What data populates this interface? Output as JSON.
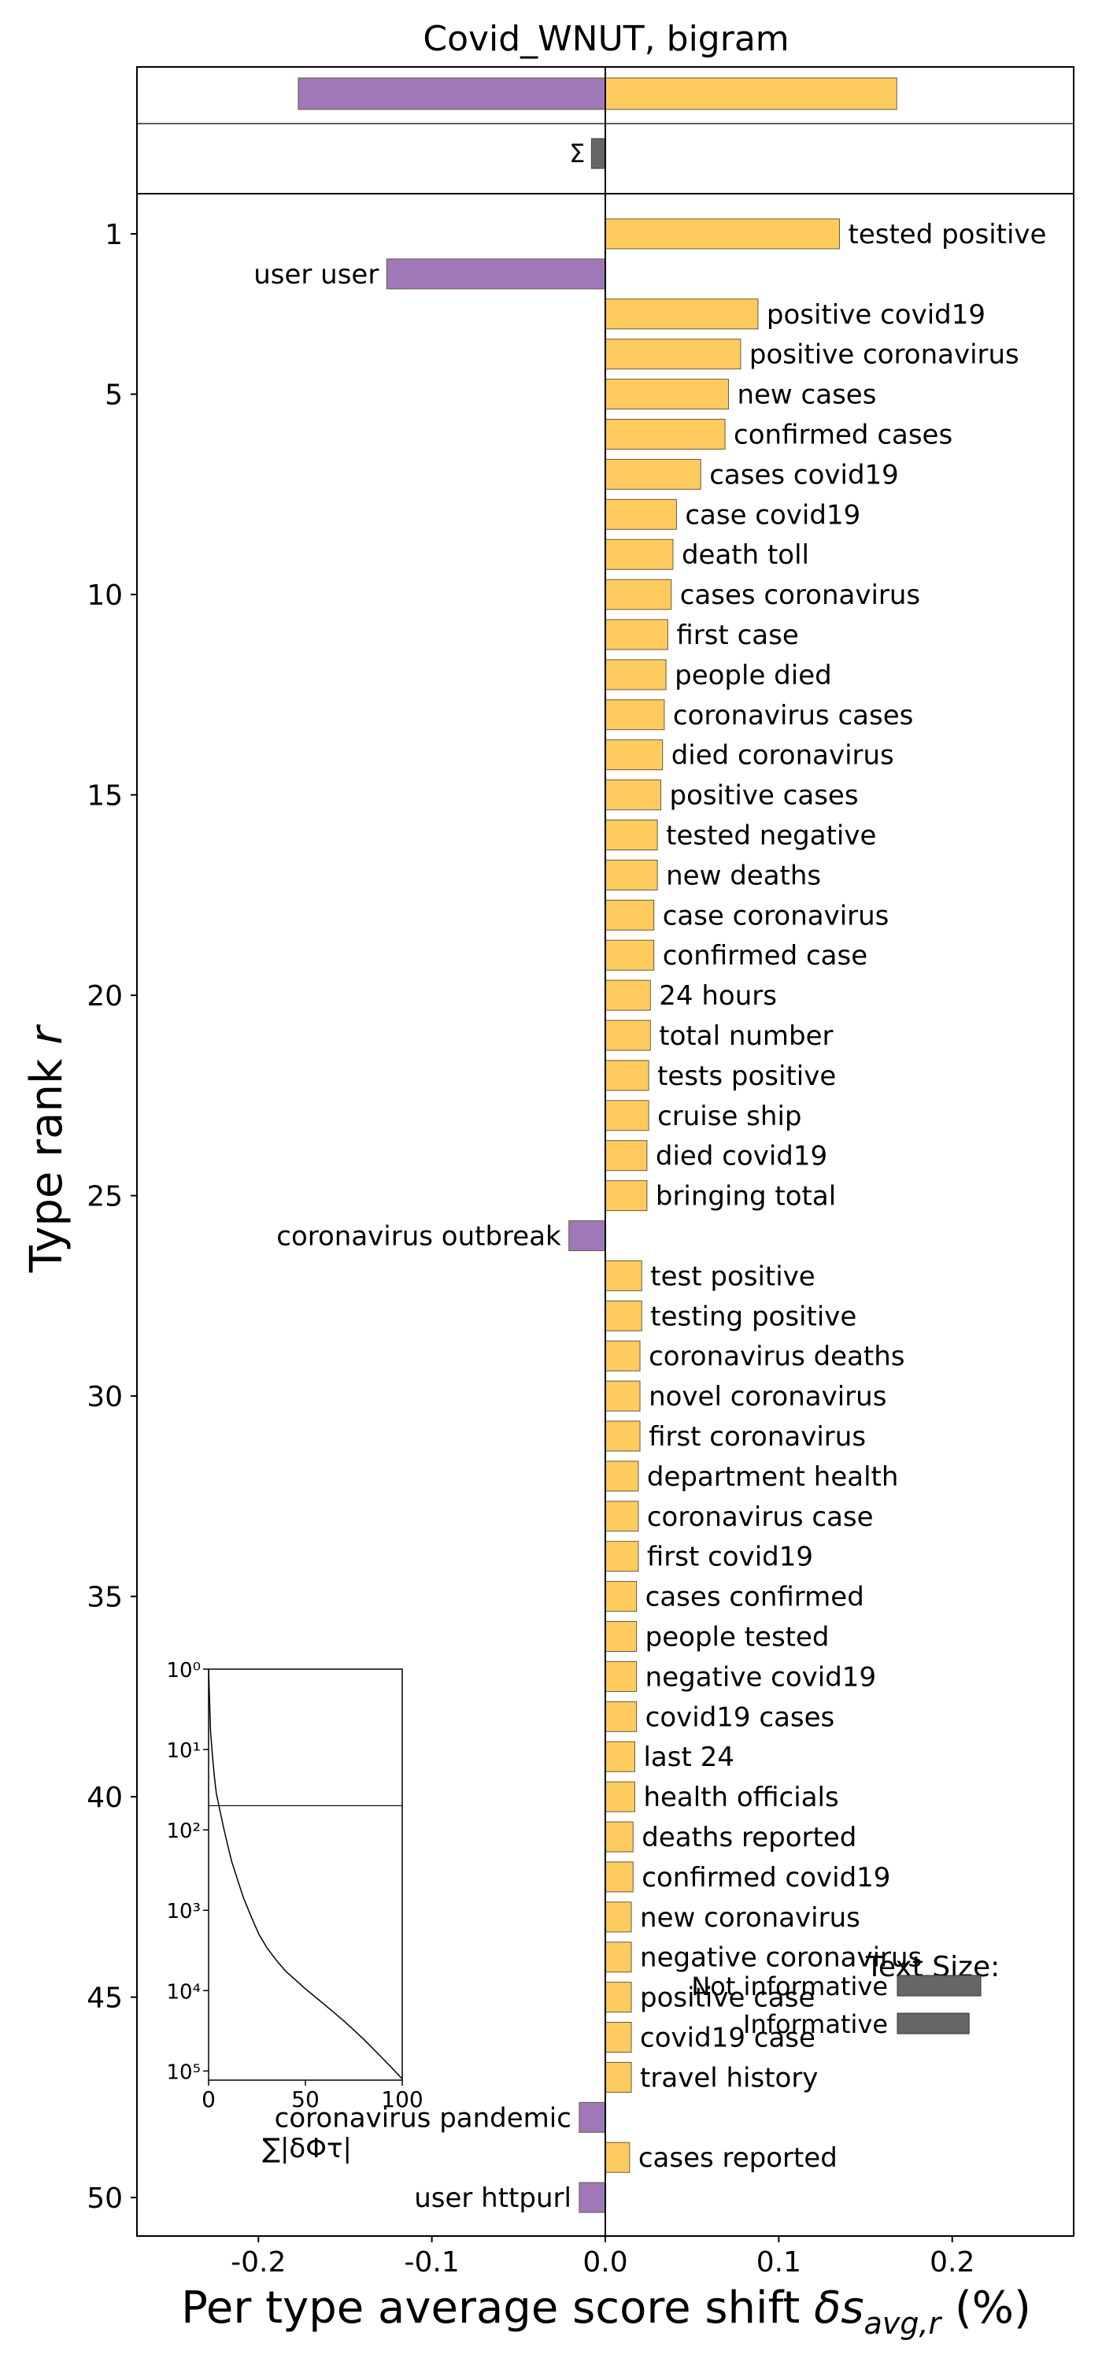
{
  "chart_data": {
    "type": "bar",
    "orientation": "horizontal",
    "title": "Covid_WNUT, bigram",
    "xlabel": "Per type average score shift δs_avg,r (%)",
    "ylabel": "Type rank r",
    "xlim": [
      -0.27,
      0.27
    ],
    "ylim": [
      0.5,
      50.7
    ],
    "xticks": [
      -0.2,
      -0.1,
      0.0,
      0.1,
      0.2
    ],
    "xtick_labels": [
      "-0.2",
      "-0.1",
      "0.0",
      "0.1",
      "0.2"
    ],
    "yticks": [
      1,
      5,
      10,
      15,
      20,
      25,
      30,
      35,
      40,
      45,
      50
    ],
    "ytick_labels": [
      "1",
      "5",
      "10",
      "15",
      "20",
      "25",
      "30",
      "35",
      "40",
      "45",
      "50"
    ],
    "colors": {
      "positive": "#fecb5f",
      "negative": "#9e78b8",
      "sum": "#666666",
      "edge": "#6a5a3a"
    },
    "summary": {
      "negative_total": -0.177,
      "positive_total": 0.168,
      "sum_label": "Σ",
      "sum_value": -0.008
    },
    "categories": [
      "tested positive",
      "user user",
      "positive covid19",
      "positive coronavirus",
      "new cases",
      "confirmed cases",
      "cases covid19",
      "case covid19",
      "death toll",
      "cases coronavirus",
      "first case",
      "people died",
      "coronavirus cases",
      "died coronavirus",
      "positive cases",
      "tested negative",
      "new deaths",
      "case coronavirus",
      "confirmed case",
      "24 hours",
      "total number",
      "tests positive",
      "cruise ship",
      "died covid19",
      "bringing total",
      "coronavirus outbreak",
      "test positive",
      "testing positive",
      "coronavirus deaths",
      "novel coronavirus",
      "first coronavirus",
      "department health",
      "coronavirus case",
      "first covid19",
      "cases confirmed",
      "people tested",
      "negative covid19",
      "covid19 cases",
      "last 24",
      "health officials",
      "deaths reported",
      "confirmed covid19",
      "new coronavirus",
      "negative coronavirus",
      "positive case",
      "covid19 case",
      "travel history",
      "coronavirus pandemic",
      "cases reported",
      "user httpurl"
    ],
    "values": [
      0.135,
      -0.126,
      0.088,
      0.078,
      0.071,
      0.069,
      0.055,
      0.041,
      0.039,
      0.038,
      0.036,
      0.035,
      0.034,
      0.033,
      0.032,
      0.03,
      0.03,
      0.028,
      0.028,
      0.026,
      0.026,
      0.025,
      0.025,
      0.024,
      0.024,
      -0.021,
      0.021,
      0.021,
      0.02,
      0.02,
      0.02,
      0.019,
      0.019,
      0.019,
      0.018,
      0.018,
      0.018,
      0.018,
      0.017,
      0.017,
      0.016,
      0.016,
      0.015,
      0.015,
      0.015,
      0.015,
      0.015,
      -0.015,
      0.014,
      -0.015
    ],
    "legend": {
      "title": "Text Size:",
      "entries": [
        {
          "label": "Not informative",
          "value": 0.05
        },
        {
          "label": "Informative",
          "value": 0.043
        }
      ]
    },
    "inset": {
      "type": "line",
      "xlabel": "∑|δΦτ|",
      "xticks": [
        0,
        50,
        100
      ],
      "xtick_labels": [
        "0",
        "50",
        "100"
      ],
      "xlim": [
        0,
        100
      ],
      "y_scale": "log",
      "ytick_labels": [
        "10⁰",
        "10¹",
        "10²",
        "10³",
        "10⁴",
        "10⁵"
      ],
      "ylim": [
        1,
        130000
      ],
      "reference_rank": 50,
      "curve_x": [
        0,
        1,
        2,
        3,
        4,
        6,
        8,
        10,
        12,
        15,
        18,
        22,
        26,
        30,
        35,
        40,
        50,
        60,
        70,
        80,
        90,
        100
      ],
      "curve_y": [
        1,
        6,
        12,
        22,
        35,
        60,
        100,
        160,
        250,
        420,
        700,
        1200,
        2000,
        2900,
        4200,
        5800,
        9500,
        15000,
        24000,
        40000,
        70000,
        125000
      ]
    }
  }
}
